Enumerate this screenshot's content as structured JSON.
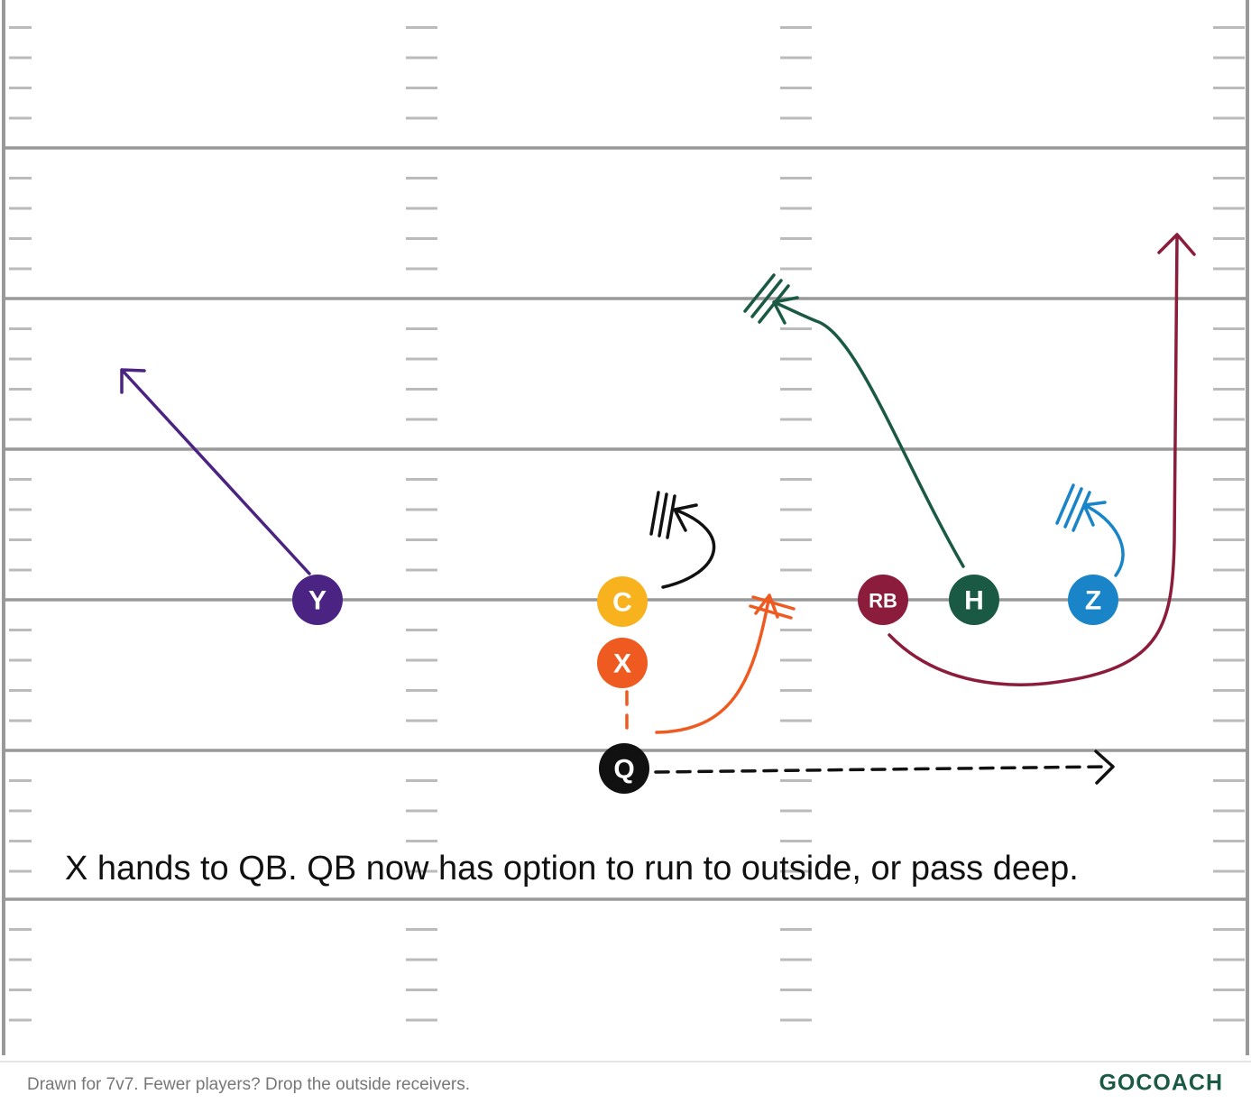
{
  "players": [
    {
      "label": "Y"
    },
    {
      "label": "C"
    },
    {
      "label": "X"
    },
    {
      "label": "Q"
    },
    {
      "label": "RB"
    },
    {
      "label": "H"
    },
    {
      "label": "Z"
    }
  ],
  "caption": "X hands to QB. QB now has option to run to outside, or pass deep.",
  "footer": {
    "note": "Drawn for 7v7. Fewer players? Drop the outside receivers.",
    "brand": "GOCOACH"
  }
}
